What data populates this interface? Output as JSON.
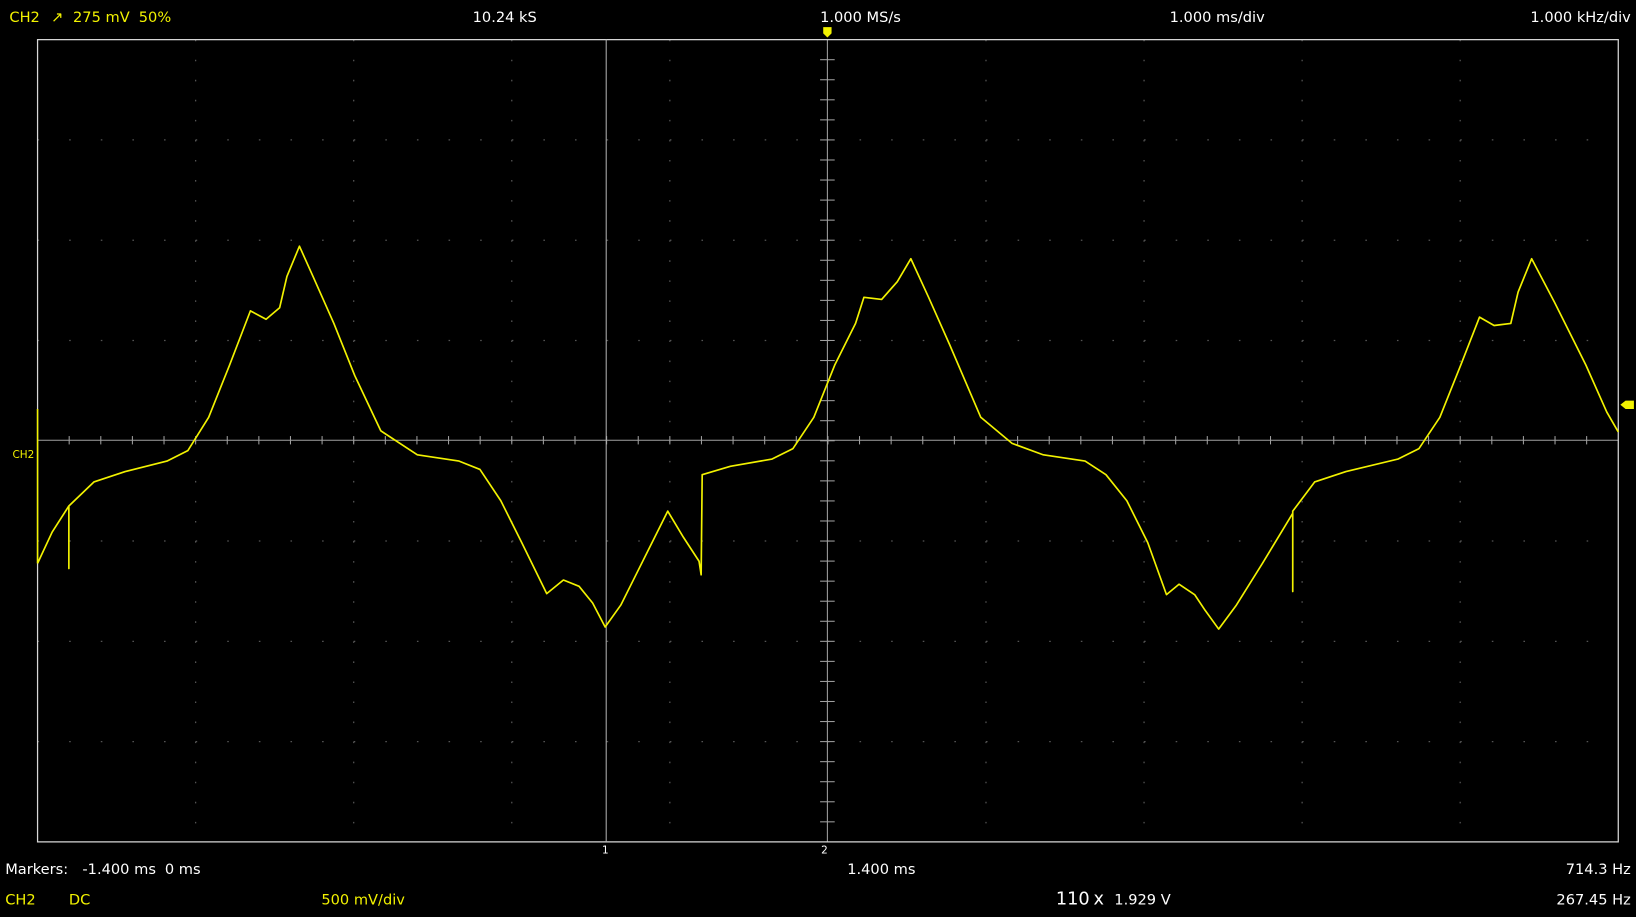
{
  "header": {
    "channel": "CH2",
    "trigger_slope": "↗",
    "trigger_level": "275 mV",
    "trigger_position": "50%",
    "sample_count": "10.24 kS",
    "sample_rate": "1.000 MS/s",
    "time_scale": "1.000 ms/div",
    "freq_scale": "1.000 kHz/div"
  },
  "screen": {
    "channel_label": "CH2",
    "marker_labels": [
      "1",
      "2"
    ]
  },
  "footer": {
    "markers_label": "Markers:",
    "marker1": "-1.400 ms",
    "marker2": "0 ms",
    "delta": "1.400 ms",
    "frequency": "714.3 Hz",
    "channel": "CH2",
    "coupling": "DC",
    "volt_scale": "500 mV/div",
    "count": "110",
    "multiply": "x",
    "voltage": "1.929 V",
    "measured_frequency": "267.45 Hz"
  }
}
